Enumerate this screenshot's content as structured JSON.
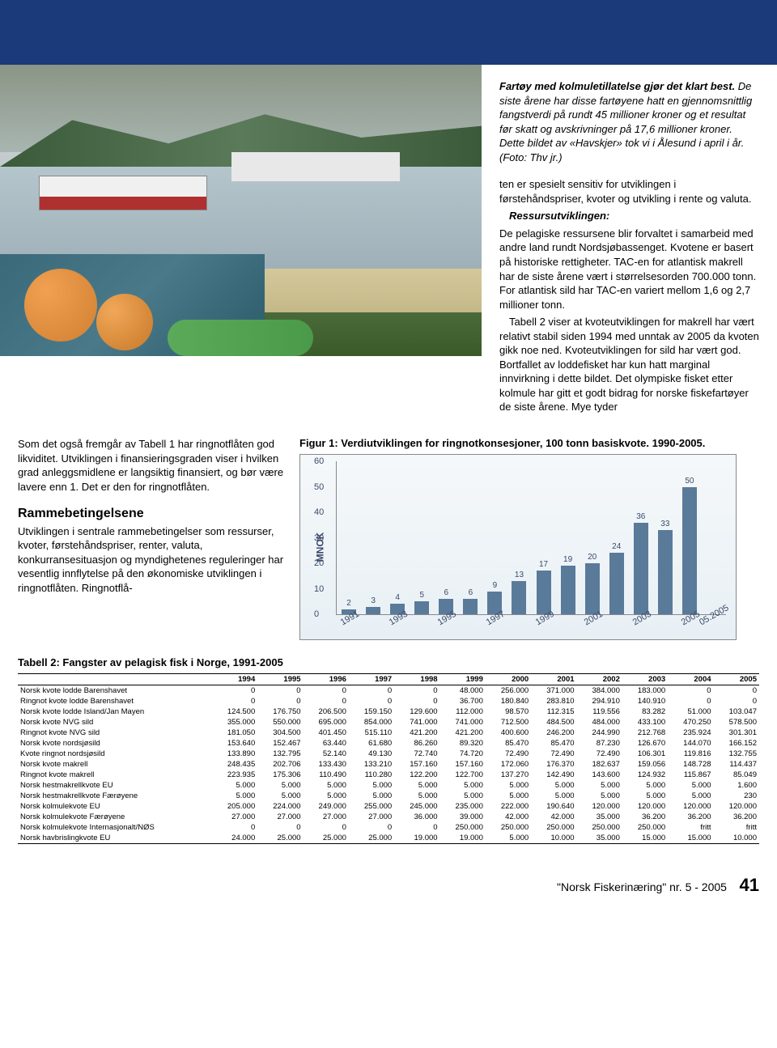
{
  "caption": {
    "lead": "Fartøy med kolmuletillatelse gjør det klart best.",
    "rest": " De siste årene har disse fartøyene hatt en gjennomsnittlig fangstverdi på rundt 45 millioner kroner og et resultat før skatt og avskrivninger på 17,6 millioner kroner. Dette bildet av «Havskjer» tok vi i Ålesund i april i år. (Foto: Thv jr.)"
  },
  "body": {
    "p1": "ten er spesielt sensitiv for utviklingen i førstehåndspriser, kvoter og utvikling i rente og valuta.",
    "ressurs_head": "Ressursutviklingen:",
    "p2": "De pelagiske ressursene blir forvaltet i samarbeid med andre land rundt Nordsjøbassenget. Kvotene er basert på historiske rettigheter. TAC-en for atlantisk makrell har de siste årene vært i størrelsesorden 700.000 tonn. For atlantisk sild har TAC-en variert mellom 1,6 og 2,7 millioner tonn.",
    "p3": "Tabell 2 viser at kvoteutviklingen for makrell har vært relativt stabil siden 1994 med unntak av 2005 da kvoten gikk noe ned. Kvoteutviklingen for sild har vært god. Bortfallet av loddefisket har kun hatt marginal innvirkning i dette bildet. Det olympiske fisket etter kolmule har gitt et godt bidrag for norske fiskefartøyer de siste årene. Mye tyder"
  },
  "left": {
    "para1": "Som det også fremgår av Tabell 1 har ringnotflåten god likviditet. Utviklingen i finansieringsgraden viser i hvilken grad anleggsmidlene er langsiktig finansiert, og bør være lavere enn 1. Det er den for ringnotflåten.",
    "h3": "Rammebetingelsene",
    "para2": "Utviklingen i sentrale rammebetingelser som ressurser, kvoter, førstehåndspriser, renter, valuta, konkurransesituasjon og myndighetenes reguleringer har vesentlig innflytelse på den økonomiske utviklingen i ringnotflåten. Ringnotflå-"
  },
  "figure": {
    "title": "Figur 1: Verdiutviklingen for ringnotkonsesjoner, 100 tonn basiskvote. 1990-2005.",
    "ylabel": "MNOK",
    "ymin": 0,
    "ymax": 60,
    "yticks": [
      0,
      10,
      20,
      30,
      40,
      50,
      60
    ],
    "bar_color": "#5a7a9a",
    "background": "#eaf2f7",
    "data": [
      {
        "x": "1991",
        "v": 2
      },
      {
        "x": "",
        "v": 3
      },
      {
        "x": "1993",
        "v": 4
      },
      {
        "x": "",
        "v": 5
      },
      {
        "x": "1995",
        "v": 6
      },
      {
        "x": "",
        "v": 6
      },
      {
        "x": "1997",
        "v": 9
      },
      {
        "x": "",
        "v": 13
      },
      {
        "x": "1999",
        "v": 17
      },
      {
        "x": "",
        "v": 19
      },
      {
        "x": "2001",
        "v": 20
      },
      {
        "x": "",
        "v": 24
      },
      {
        "x": "2003",
        "v": 36
      },
      {
        "x": "",
        "v": 33
      },
      {
        "x": "2005",
        "v": 50
      },
      {
        "x": "05.2005",
        "v": null
      }
    ]
  },
  "table": {
    "title": "Tabell 2: Fangster av pelagisk fisk i Norge, 1991-2005",
    "columns": [
      "",
      "1994",
      "1995",
      "1996",
      "1997",
      "1998",
      "1999",
      "2000",
      "2001",
      "2002",
      "2003",
      "2004",
      "2005"
    ],
    "rows": [
      [
        "Norsk kvote lodde Barenshavet",
        "0",
        "0",
        "0",
        "0",
        "0",
        "48.000",
        "256.000",
        "371.000",
        "384.000",
        "183.000",
        "0",
        "0"
      ],
      [
        "Ringnot kvote lodde Barenshavet",
        "0",
        "0",
        "0",
        "0",
        "0",
        "36.700",
        "180.840",
        "283.810",
        "294.910",
        "140.910",
        "0",
        "0"
      ],
      [
        "Norsk kvote lodde Island/Jan Mayen",
        "124.500",
        "176.750",
        "206.500",
        "159.150",
        "129.600",
        "112.000",
        "98.570",
        "112.315",
        "119.556",
        "83.282",
        "51.000",
        "103.047"
      ],
      [
        "Norsk kvote NVG sild",
        "355.000",
        "550.000",
        "695.000",
        "854.000",
        "741.000",
        "741.000",
        "712.500",
        "484.500",
        "484.000",
        "433.100",
        "470.250",
        "578.500"
      ],
      [
        "Ringnot kvote NVG sild",
        "181.050",
        "304.500",
        "401.450",
        "515.110",
        "421.200",
        "421.200",
        "400.600",
        "246.200",
        "244.990",
        "212.768",
        "235.924",
        "301.301"
      ],
      [
        "Norsk kvote nordsjøsild",
        "153.640",
        "152.467",
        "63.440",
        "61.680",
        "86.260",
        "89.320",
        "85.470",
        "85.470",
        "87.230",
        "126.670",
        "144.070",
        "166.152"
      ],
      [
        "Kvote ringnot nordsjøsild",
        "133.890",
        "132.795",
        "52.140",
        "49.130",
        "72.740",
        "74.720",
        "72.490",
        "72.490",
        "72.490",
        "106.301",
        "119.816",
        "132.755"
      ],
      [
        "Norsk kvote makrell",
        "248.435",
        "202.706",
        "133.430",
        "133.210",
        "157.160",
        "157.160",
        "172.060",
        "176.370",
        "182.637",
        "159.056",
        "148.728",
        "114.437"
      ],
      [
        "Ringnot kvote makrell",
        "223.935",
        "175.306",
        "110.490",
        "110.280",
        "122.200",
        "122.700",
        "137.270",
        "142.490",
        "143.600",
        "124.932",
        "115.867",
        "85.049"
      ],
      [
        "Norsk hestmakrellkvote EU",
        "5.000",
        "5.000",
        "5.000",
        "5.000",
        "5.000",
        "5.000",
        "5.000",
        "5.000",
        "5.000",
        "5.000",
        "5.000",
        "1.600"
      ],
      [
        "Norsk hestmakrellkvote Færøyene",
        "5.000",
        "5.000",
        "5.000",
        "5.000",
        "5.000",
        "5.000",
        "5.000",
        "5.000",
        "5.000",
        "5.000",
        "5.000",
        "230"
      ],
      [
        "Norsk kolmulekvote EU",
        "205.000",
        "224.000",
        "249.000",
        "255.000",
        "245.000",
        "235.000",
        "222.000",
        "190.640",
        "120.000",
        "120.000",
        "120.000",
        "120.000"
      ],
      [
        "Norsk kolmulekvote Færøyene",
        "27.000",
        "27.000",
        "27.000",
        "27.000",
        "36.000",
        "39.000",
        "42.000",
        "42.000",
        "35.000",
        "36.200",
        "36.200",
        "36.200"
      ],
      [
        "Norsk kolmulekvote Internasjonalt/NØS",
        "0",
        "0",
        "0",
        "0",
        "0",
        "250.000",
        "250.000",
        "250.000",
        "250.000",
        "250.000",
        "fritt",
        "fritt"
      ],
      [
        "Norsk havbrislingkvote EU",
        "24.000",
        "25.000",
        "25.000",
        "25.000",
        "19.000",
        "19.000",
        "5.000",
        "10.000",
        "35.000",
        "15.000",
        "15.000",
        "10.000"
      ]
    ]
  },
  "footer": {
    "mag": "\"Norsk Fiskerinæring\" nr. 5 - 2005",
    "page": "41"
  }
}
